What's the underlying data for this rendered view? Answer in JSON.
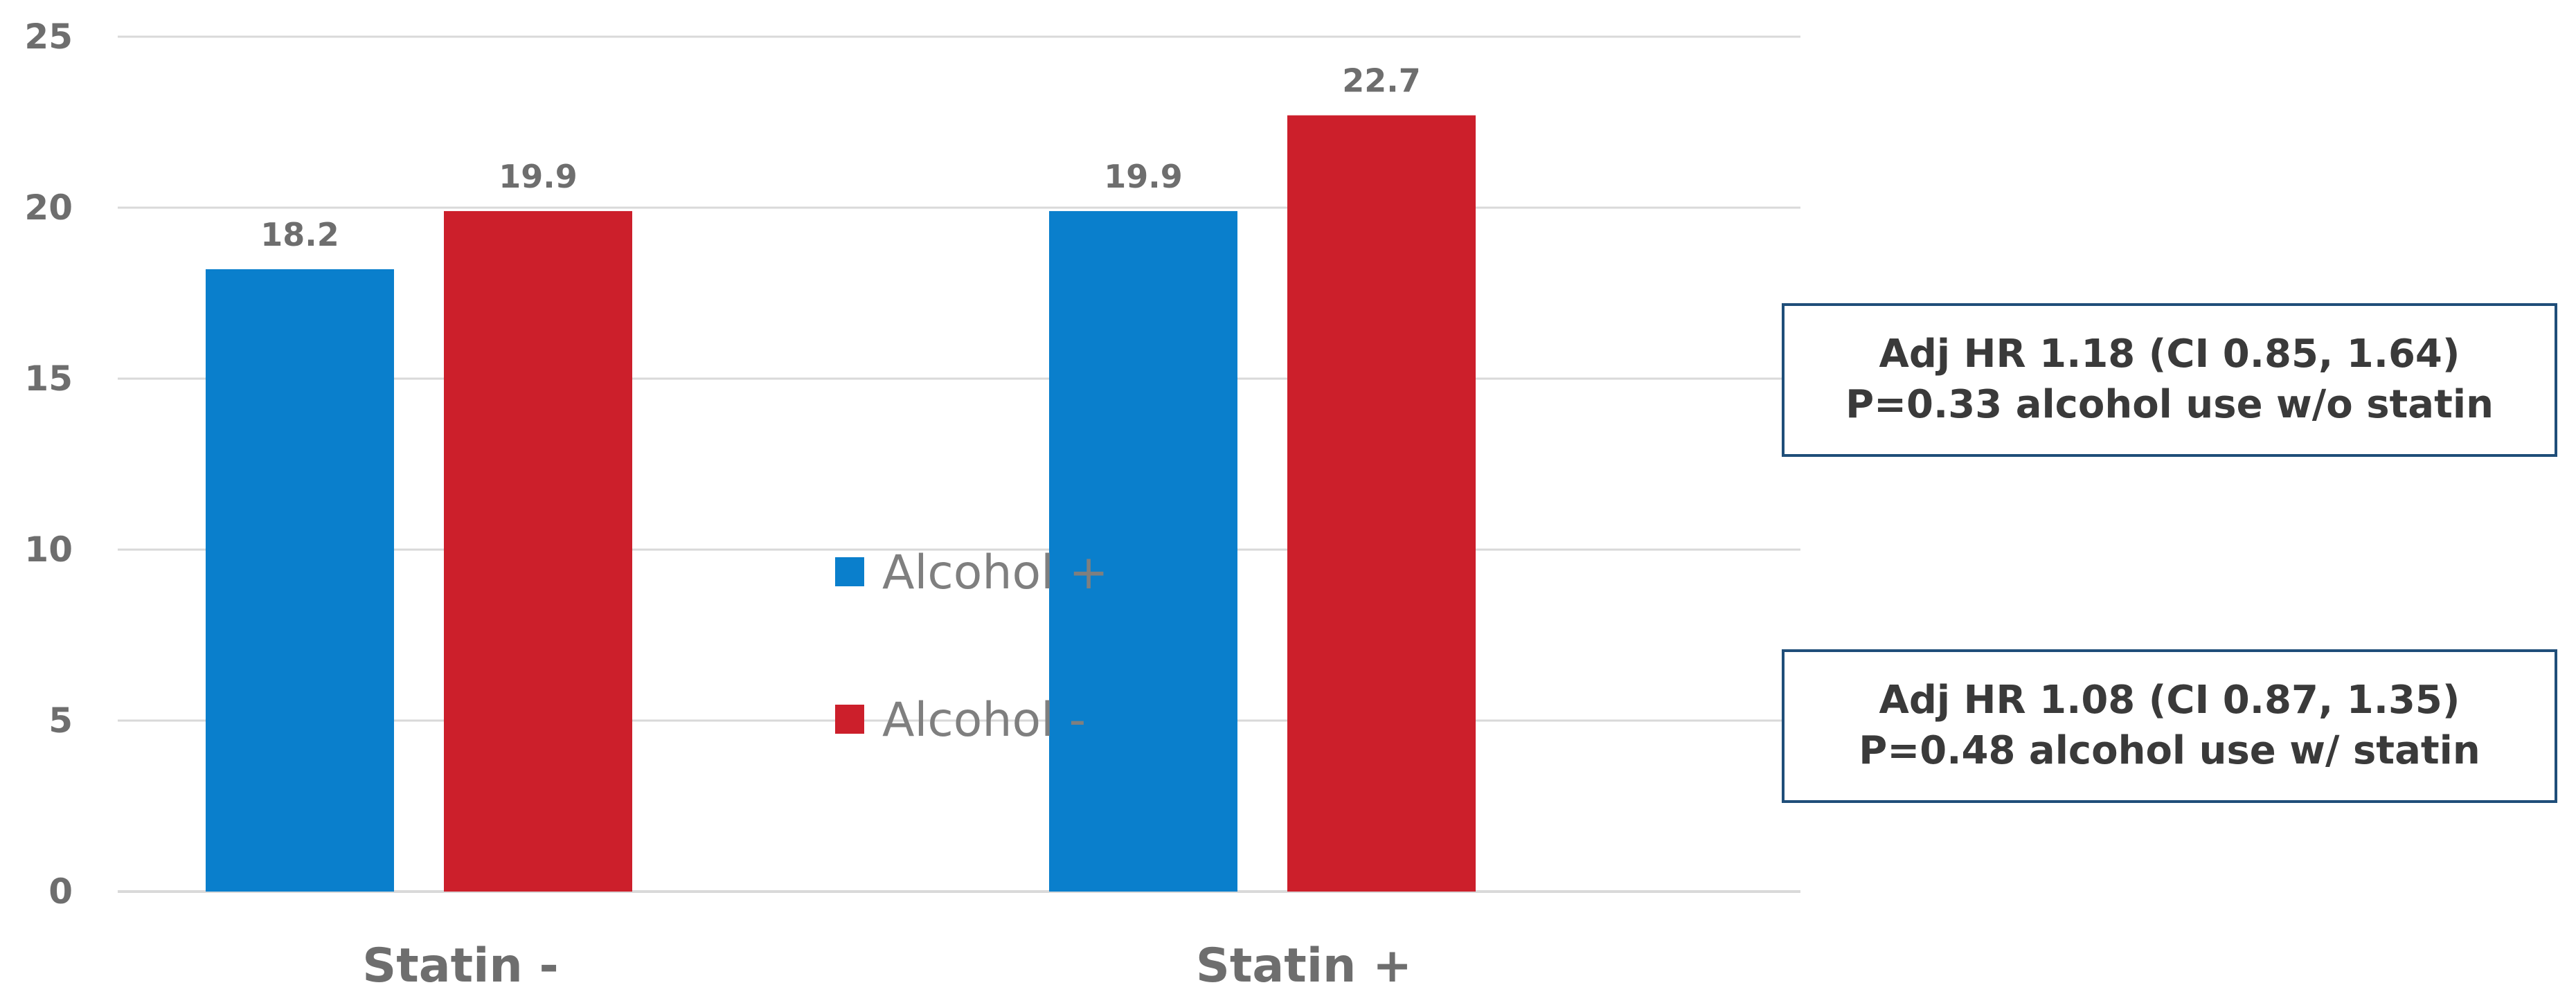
{
  "chart_data": {
    "type": "bar",
    "categories": [
      "Statin -",
      "Statin +"
    ],
    "series": [
      {
        "name": "Alcohol +",
        "color": "#0a7fcc",
        "values": [
          18.2,
          19.9
        ]
      },
      {
        "name": "Alcohol -",
        "color": "#cc1f2b",
        "values": [
          19.9,
          22.7
        ]
      }
    ],
    "data_labels": [
      [
        "18.2",
        "19.9"
      ],
      [
        "19.9",
        "22.7"
      ]
    ],
    "ylim": [
      0,
      25
    ],
    "yticks": [
      0,
      5,
      10,
      15,
      20,
      25
    ],
    "ytick_labels": [
      "0",
      "5",
      "10",
      "15",
      "20",
      "25"
    ],
    "grid": true,
    "legend_position": "center",
    "annotations": [
      {
        "line1": "Adj HR 1.18 (CI 0.85, 1.64)",
        "line2": "P=0.33 alcohol use w/o statin"
      },
      {
        "line1": "Adj HR 1.08 (CI 0.87, 1.35)",
        "line2": "P=0.48 alcohol use w/ statin"
      }
    ]
  }
}
